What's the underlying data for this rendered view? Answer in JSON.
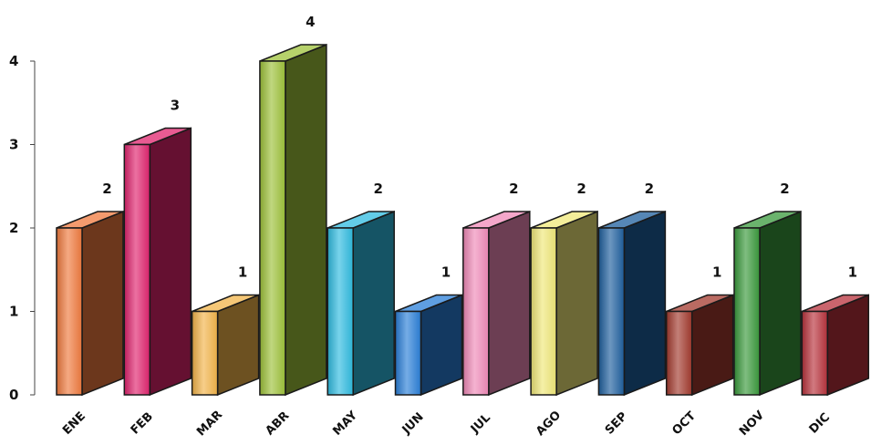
{
  "chart_data": {
    "type": "bar",
    "title": "",
    "xlabel": "",
    "ylabel": "",
    "ylim": [
      0,
      4
    ],
    "yticks": [
      0,
      1,
      2,
      3,
      4
    ],
    "grid": false,
    "legend": "none",
    "style": "3d",
    "categories": [
      "ENE",
      "FEB",
      "MAR",
      "ABR",
      "MAY",
      "JUN",
      "JUL",
      "AGO",
      "SEP",
      "OCT",
      "NOV",
      "DIC"
    ],
    "values": [
      2,
      3,
      1,
      4,
      2,
      1,
      2,
      2,
      2,
      1,
      2,
      1
    ],
    "colors": [
      "#f07a3e",
      "#e0246e",
      "#f2b44a",
      "#9ec23a",
      "#2fbbe0",
      "#2a7fd8",
      "#f08ab8",
      "#f0e878",
      "#1e5f9e",
      "#a33a2e",
      "#3a9a3c",
      "#b8323c"
    ]
  }
}
